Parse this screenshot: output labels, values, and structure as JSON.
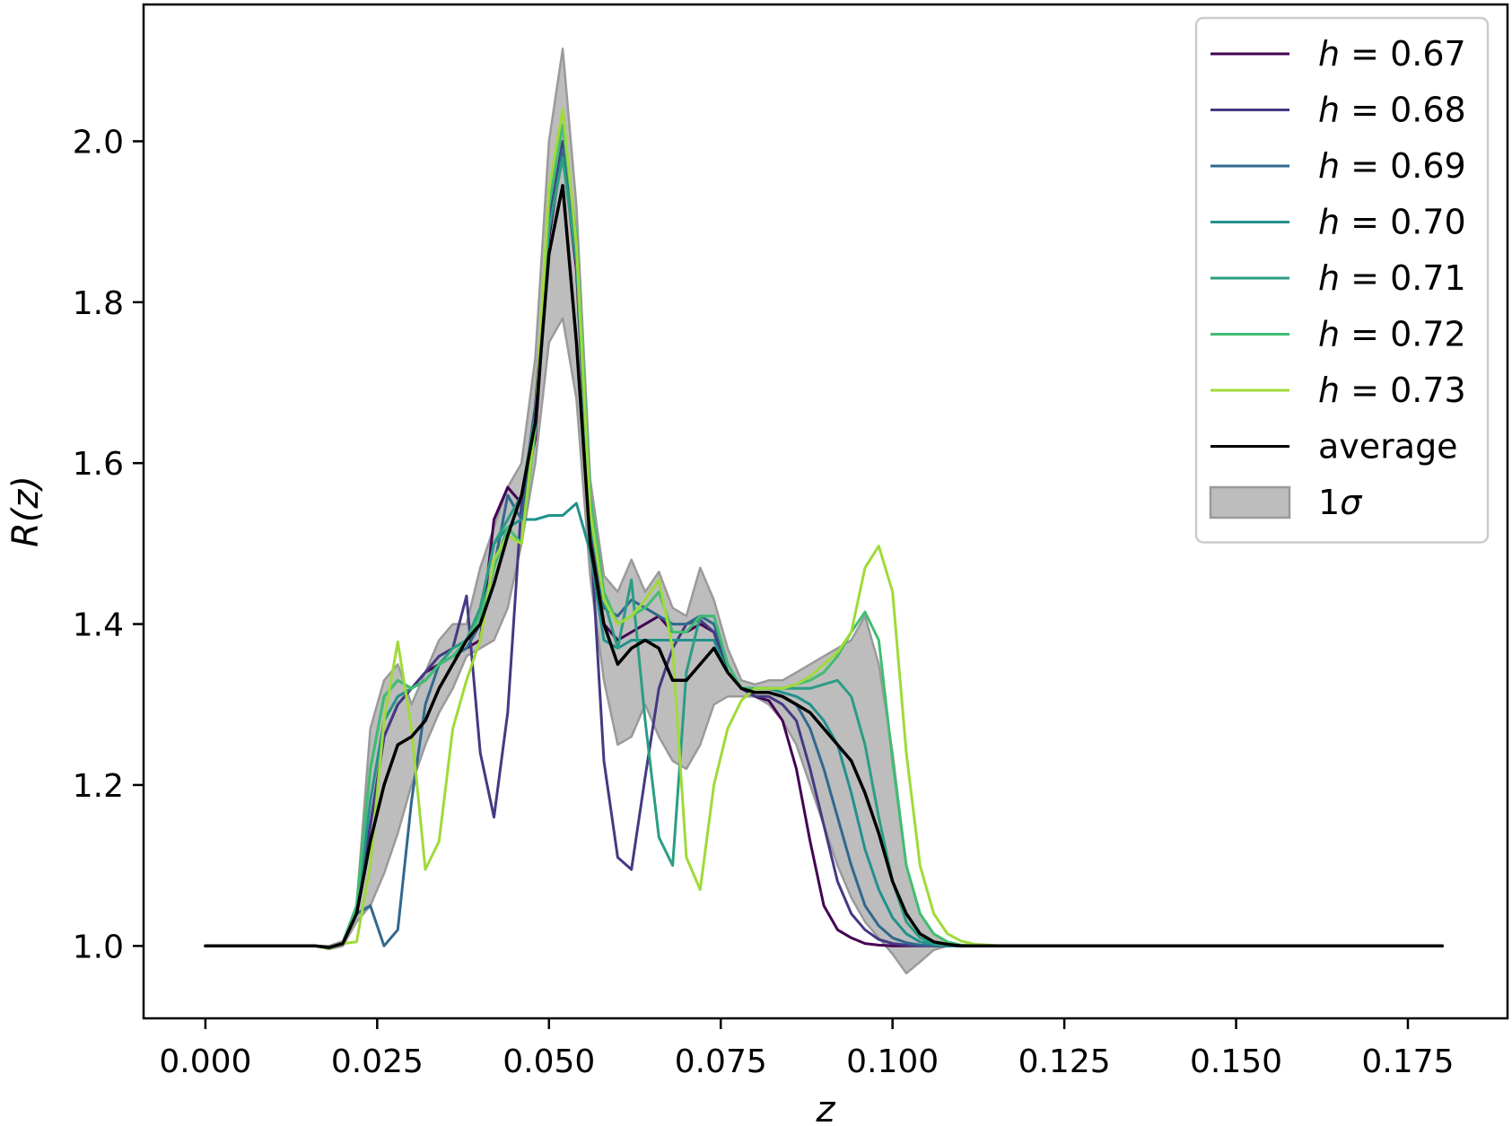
{
  "chart_data": {
    "type": "line",
    "xlabel": "z",
    "ylabel": "R(z)",
    "xlim": [
      -0.009,
      0.1895
    ],
    "ylim": [
      0.91,
      2.17
    ],
    "xticks": [
      0.0,
      0.025,
      0.05,
      0.075,
      0.1,
      0.125,
      0.15,
      0.175
    ],
    "xtick_labels": [
      "0.000",
      "0.025",
      "0.050",
      "0.075",
      "0.100",
      "0.125",
      "0.150",
      "0.175"
    ],
    "yticks": [
      1.0,
      1.2,
      1.4,
      1.6,
      1.8,
      2.0
    ],
    "ytick_labels": [
      "1.0",
      "1.2",
      "1.4",
      "1.6",
      "1.8",
      "2.0"
    ],
    "grid": false,
    "legend_position": "top-right",
    "x": [
      0.0,
      0.016,
      0.018,
      0.02,
      0.022,
      0.024,
      0.026,
      0.028,
      0.03,
      0.032,
      0.034,
      0.036,
      0.038,
      0.04,
      0.042,
      0.044,
      0.046,
      0.048,
      0.05,
      0.052,
      0.054,
      0.056,
      0.058,
      0.06,
      0.062,
      0.064,
      0.066,
      0.068,
      0.07,
      0.072,
      0.074,
      0.076,
      0.078,
      0.08,
      0.082,
      0.084,
      0.086,
      0.088,
      0.09,
      0.092,
      0.094,
      0.096,
      0.098,
      0.1,
      0.102,
      0.104,
      0.106,
      0.108,
      0.11,
      0.112,
      0.114,
      0.116,
      0.18
    ],
    "series": [
      {
        "name": "h = 0.67",
        "color": "#440154",
        "values": [
          1.0,
          1.0,
          0.998,
          1.003,
          1.04,
          1.15,
          1.26,
          1.3,
          1.32,
          1.34,
          1.35,
          1.36,
          1.37,
          1.38,
          1.53,
          1.57,
          1.55,
          1.63,
          1.88,
          1.99,
          1.84,
          1.52,
          1.4,
          1.38,
          1.39,
          1.4,
          1.41,
          1.39,
          1.39,
          1.4,
          1.39,
          1.34,
          1.32,
          1.31,
          1.305,
          1.28,
          1.22,
          1.13,
          1.05,
          1.02,
          1.01,
          1.003,
          1.001,
          1.0,
          1.0,
          1.0,
          1.0,
          1.0,
          1.0,
          1.0,
          1.0,
          1.0,
          1.0
        ]
      },
      {
        "name": "h = 0.68",
        "color": "#443983",
        "values": [
          1.0,
          1.0,
          0.998,
          1.003,
          1.04,
          1.15,
          1.26,
          1.3,
          1.32,
          1.34,
          1.36,
          1.37,
          1.435,
          1.24,
          1.16,
          1.29,
          1.55,
          1.67,
          1.9,
          2.0,
          1.85,
          1.52,
          1.23,
          1.11,
          1.095,
          1.21,
          1.32,
          1.37,
          1.4,
          1.405,
          1.39,
          1.34,
          1.32,
          1.31,
          1.31,
          1.3,
          1.28,
          1.22,
          1.15,
          1.08,
          1.04,
          1.02,
          1.008,
          1.003,
          1.001,
          1.0,
          1.0,
          1.0,
          1.0,
          1.0,
          1.0,
          1.0,
          1.0
        ]
      },
      {
        "name": "h = 0.69",
        "color": "#31688e",
        "values": [
          1.0,
          1.0,
          0.998,
          1.003,
          1.04,
          1.05,
          1.0,
          1.02,
          1.18,
          1.3,
          1.35,
          1.36,
          1.37,
          1.4,
          1.47,
          1.56,
          1.53,
          1.64,
          1.89,
          1.99,
          1.86,
          1.53,
          1.42,
          1.41,
          1.43,
          1.42,
          1.41,
          1.4,
          1.4,
          1.41,
          1.4,
          1.35,
          1.32,
          1.315,
          1.315,
          1.31,
          1.3,
          1.27,
          1.22,
          1.16,
          1.1,
          1.05,
          1.025,
          1.01,
          1.004,
          1.001,
          1.0,
          1.0,
          1.0,
          1.0,
          1.0,
          1.0,
          1.0
        ]
      },
      {
        "name": "h = 0.70",
        "color": "#21918c",
        "values": [
          1.0,
          1.0,
          0.997,
          1.003,
          1.04,
          1.18,
          1.28,
          1.31,
          1.32,
          1.33,
          1.35,
          1.36,
          1.38,
          1.42,
          1.5,
          1.52,
          1.53,
          1.53,
          1.535,
          1.535,
          1.55,
          1.49,
          1.38,
          1.37,
          1.38,
          1.38,
          1.38,
          1.38,
          1.38,
          1.38,
          1.38,
          1.34,
          1.32,
          1.32,
          1.32,
          1.315,
          1.31,
          1.3,
          1.28,
          1.25,
          1.19,
          1.12,
          1.07,
          1.035,
          1.015,
          1.005,
          1.002,
          1.0,
          1.0,
          1.0,
          1.0,
          1.0,
          1.0
        ]
      },
      {
        "name": "h = 0.71",
        "color": "#2a9d84",
        "values": [
          1.0,
          1.0,
          0.997,
          1.003,
          1.05,
          1.22,
          1.31,
          1.33,
          1.32,
          1.33,
          1.35,
          1.37,
          1.38,
          1.42,
          1.5,
          1.53,
          1.56,
          1.66,
          1.89,
          1.98,
          1.85,
          1.53,
          1.43,
          1.37,
          1.455,
          1.28,
          1.135,
          1.1,
          1.34,
          1.41,
          1.41,
          1.35,
          1.32,
          1.32,
          1.32,
          1.32,
          1.32,
          1.32,
          1.325,
          1.33,
          1.31,
          1.25,
          1.16,
          1.08,
          1.03,
          1.01,
          1.003,
          1.001,
          1.0,
          1.0,
          1.0,
          1.0,
          1.0
        ]
      },
      {
        "name": "h = 0.72",
        "color": "#40bd72",
        "values": [
          1.0,
          1.0,
          0.997,
          1.003,
          1.05,
          1.22,
          1.31,
          1.33,
          1.32,
          1.33,
          1.35,
          1.36,
          1.38,
          1.41,
          1.47,
          1.52,
          1.5,
          1.64,
          1.92,
          2.02,
          1.88,
          1.56,
          1.44,
          1.4,
          1.41,
          1.42,
          1.44,
          1.39,
          1.39,
          1.41,
          1.41,
          1.35,
          1.32,
          1.32,
          1.32,
          1.32,
          1.325,
          1.33,
          1.34,
          1.36,
          1.39,
          1.415,
          1.38,
          1.23,
          1.1,
          1.04,
          1.015,
          1.005,
          1.001,
          1.0,
          1.0,
          1.0,
          1.0
        ]
      },
      {
        "name": "h = 0.73",
        "color": "#a0da39",
        "values": [
          1.0,
          1.0,
          0.997,
          1.003,
          1.005,
          1.1,
          1.28,
          1.378,
          1.27,
          1.095,
          1.13,
          1.27,
          1.33,
          1.38,
          1.48,
          1.51,
          1.5,
          1.65,
          1.94,
          2.04,
          1.87,
          1.54,
          1.43,
          1.4,
          1.41,
          1.43,
          1.455,
          1.37,
          1.11,
          1.07,
          1.2,
          1.27,
          1.305,
          1.32,
          1.32,
          1.32,
          1.325,
          1.335,
          1.35,
          1.365,
          1.39,
          1.47,
          1.497,
          1.44,
          1.24,
          1.1,
          1.04,
          1.015,
          1.006,
          1.002,
          1.001,
          1.0,
          1.0
        ]
      },
      {
        "name": "average",
        "color": "#000000",
        "values": [
          1.0,
          1.0,
          0.998,
          1.003,
          1.04,
          1.13,
          1.2,
          1.25,
          1.26,
          1.28,
          1.32,
          1.35,
          1.38,
          1.4,
          1.45,
          1.51,
          1.56,
          1.65,
          1.86,
          1.945,
          1.75,
          1.5,
          1.4,
          1.35,
          1.37,
          1.38,
          1.37,
          1.33,
          1.33,
          1.35,
          1.37,
          1.34,
          1.32,
          1.315,
          1.315,
          1.31,
          1.3,
          1.29,
          1.27,
          1.25,
          1.23,
          1.19,
          1.14,
          1.08,
          1.04,
          1.015,
          1.005,
          1.002,
          1.0,
          1.0,
          1.0,
          1.0,
          1.0
        ]
      }
    ],
    "band": {
      "name": "1σ",
      "color": "#bdbdbd",
      "edge_color": "#9a9a9a",
      "upper": [
        1.0,
        1.0,
        1.0,
        1.006,
        1.05,
        1.27,
        1.33,
        1.35,
        1.3,
        1.34,
        1.38,
        1.4,
        1.4,
        1.47,
        1.52,
        1.57,
        1.6,
        1.73,
        2.0,
        2.115,
        1.92,
        1.58,
        1.46,
        1.44,
        1.48,
        1.44,
        1.465,
        1.42,
        1.41,
        1.47,
        1.43,
        1.37,
        1.33,
        1.325,
        1.33,
        1.33,
        1.34,
        1.35,
        1.36,
        1.37,
        1.38,
        1.41,
        1.35,
        1.24,
        1.1,
        1.04,
        1.015,
        1.005,
        1.001,
        1.0,
        1.0,
        1.0,
        1.0
      ],
      "lower": [
        1.0,
        1.0,
        0.996,
        1.0,
        1.03,
        1.05,
        1.09,
        1.14,
        1.2,
        1.25,
        1.29,
        1.32,
        1.36,
        1.37,
        1.38,
        1.42,
        1.5,
        1.6,
        1.75,
        1.78,
        1.68,
        1.46,
        1.33,
        1.25,
        1.26,
        1.3,
        1.26,
        1.23,
        1.22,
        1.25,
        1.3,
        1.31,
        1.31,
        1.31,
        1.3,
        1.28,
        1.25,
        1.2,
        1.15,
        1.1,
        1.06,
        1.03,
        1.01,
        0.99,
        0.966,
        0.98,
        0.995,
        1.0,
        1.0,
        1.0,
        1.0,
        1.0,
        1.0
      ]
    }
  }
}
